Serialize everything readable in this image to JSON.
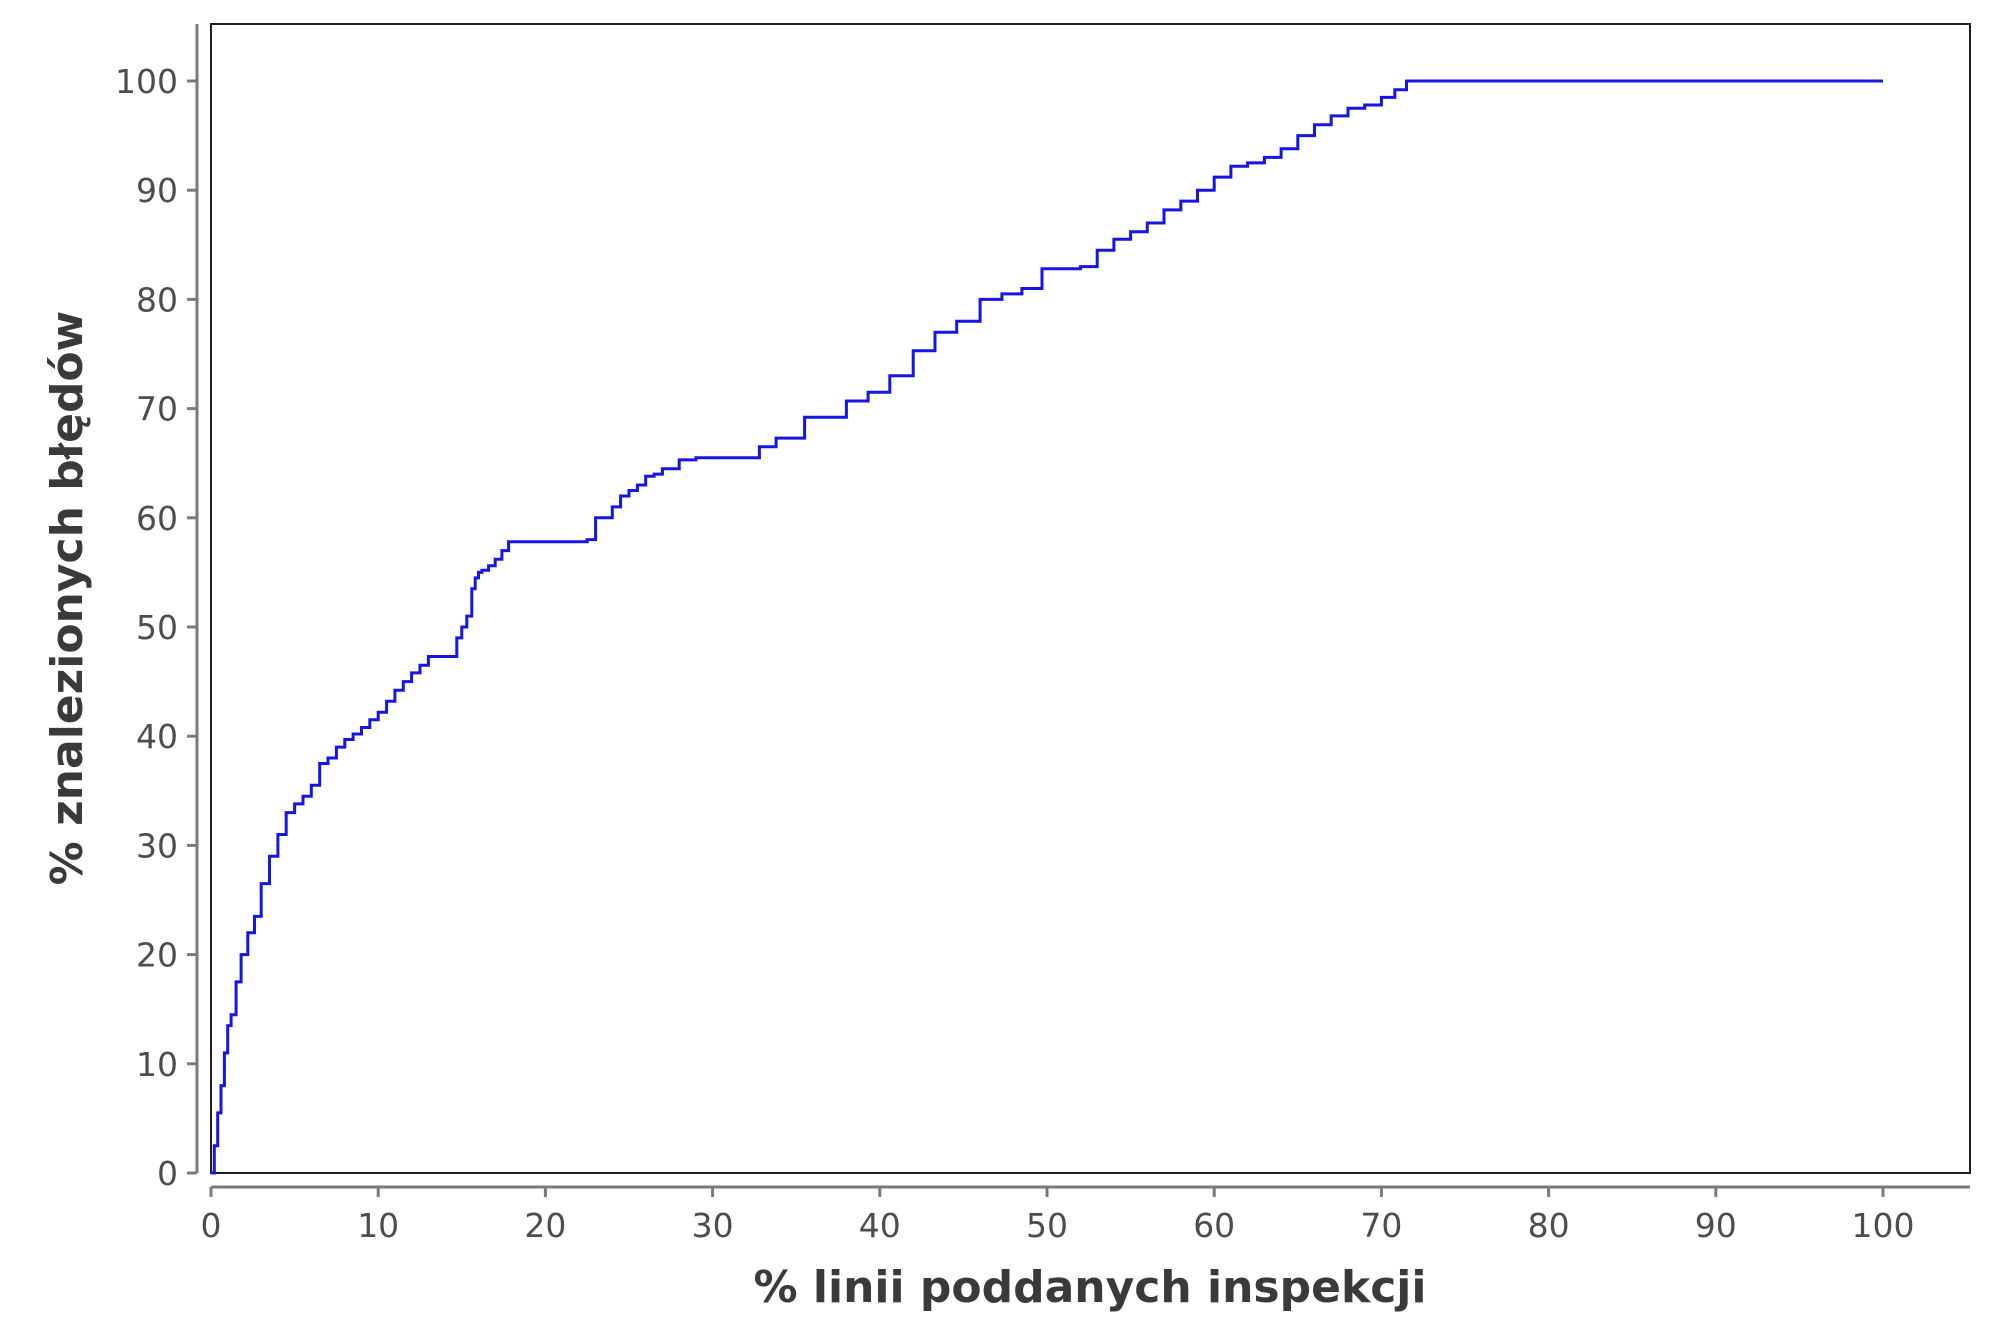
{
  "chart_data": {
    "type": "line",
    "title": "",
    "xlabel": "% linii poddanych inspekcji",
    "ylabel": "% znalezionych błędów",
    "xlim": [
      0,
      105
    ],
    "ylim": [
      0,
      105
    ],
    "x_ticks": [
      0,
      10,
      20,
      30,
      40,
      50,
      60,
      70,
      80,
      90,
      100
    ],
    "y_ticks": [
      0,
      10,
      20,
      30,
      40,
      50,
      60,
      70,
      80,
      90,
      100
    ],
    "grid": false,
    "legend": "none",
    "series": [
      {
        "color": "#1515e6",
        "step": true,
        "x": [
          0,
          0.2,
          0.4,
          0.6,
          0.8,
          1.0,
          1.2,
          1.5,
          1.8,
          2.2,
          2.6,
          3.0,
          3.5,
          4.0,
          4.5,
          5.0,
          5.5,
          6.0,
          6.5,
          7.0,
          7.5,
          8.0,
          8.5,
          9.0,
          9.5,
          10.0,
          10.5,
          11.0,
          11.5,
          12.0,
          12.5,
          13.0,
          13.5,
          14.0,
          14.7,
          15.0,
          15.3,
          15.6,
          15.8,
          16.0,
          16.2,
          16.6,
          17.0,
          17.4,
          17.8,
          18.0,
          22.5,
          23.0,
          24.0,
          24.5,
          25.0,
          25.5,
          26.0,
          26.5,
          27.0,
          28.0,
          28.5,
          29.0,
          32.8,
          33.8,
          35.5,
          38.0,
          39.3,
          40.6,
          42.0,
          43.3,
          44.6,
          46.0,
          47.3,
          48.5,
          49.7,
          52.0,
          53.0,
          54.0,
          55.0,
          56.0,
          57.0,
          58.0,
          59.0,
          60.0,
          61.0,
          62.0,
          63.0,
          64.0,
          65.0,
          66.0,
          67.0,
          68.0,
          69.0,
          70.0,
          70.8,
          71.5,
          72.0,
          100.0
        ],
        "y": [
          0,
          2.5,
          5.5,
          8.0,
          11.0,
          13.5,
          14.5,
          17.5,
          20.0,
          22.0,
          23.5,
          26.5,
          29.0,
          31.0,
          33.0,
          33.8,
          34.5,
          35.5,
          37.5,
          38.0,
          39.0,
          39.7,
          40.2,
          40.8,
          41.5,
          42.2,
          43.2,
          44.2,
          45.0,
          45.8,
          46.5,
          47.3,
          47.3,
          47.3,
          49.0,
          50.0,
          51.0,
          53.5,
          54.5,
          55.0,
          55.2,
          55.6,
          56.2,
          57.0,
          57.8,
          57.8,
          58.0,
          60.0,
          61.0,
          62.0,
          62.5,
          63.0,
          63.8,
          64.0,
          64.5,
          65.3,
          65.3,
          65.5,
          66.5,
          67.3,
          69.2,
          70.7,
          71.5,
          73.0,
          75.3,
          77.0,
          78.0,
          80.0,
          80.5,
          81.0,
          82.8,
          83.0,
          84.5,
          85.5,
          86.2,
          87.0,
          88.2,
          89.0,
          90.0,
          91.2,
          92.2,
          92.5,
          93.0,
          93.8,
          95.0,
          96.0,
          96.8,
          97.5,
          97.8,
          98.5,
          99.2,
          100.0,
          100.0,
          100.0
        ]
      }
    ]
  }
}
